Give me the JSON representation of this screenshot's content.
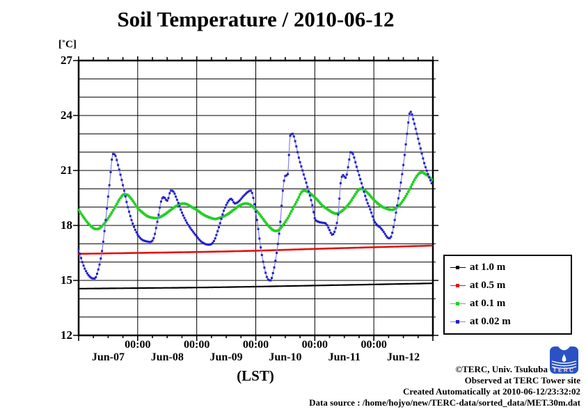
{
  "chart_data": {
    "type": "line",
    "title": "Soil Temperature / 2010-06-12",
    "x_axis": {
      "label": "(LST)",
      "hours_total": 144,
      "minor_tick_hours": 6,
      "major_tick_hours": 24,
      "day_labels": [
        "Jun-07",
        "Jun-08",
        "Jun-09",
        "Jun-10",
        "Jun-11",
        "Jun-12"
      ],
      "time_labels": [
        "00:00",
        "00:00",
        "00:00",
        "00:00",
        "00:00"
      ]
    },
    "y_axis": {
      "unit": "[˚C]",
      "min": 12,
      "max": 27,
      "major_ticks": [
        27,
        24,
        21,
        18,
        15,
        12
      ],
      "grid_step_c": 1
    },
    "sample_step_hours": 0.5,
    "series": [
      {
        "name": "at 1.0 m",
        "color": "#000000",
        "line_color": "#000000",
        "marker_size": 2.2,
        "line_width": 1.2,
        "points": [
          [
            0,
            14.55
          ],
          [
            24,
            14.58
          ],
          [
            48,
            14.61
          ],
          [
            72,
            14.66
          ],
          [
            96,
            14.72
          ],
          [
            120,
            14.78
          ],
          [
            143.5,
            14.84
          ]
        ]
      },
      {
        "name": "at 0.5 m",
        "color": "#e60f0f",
        "line_color": "#e60f0f",
        "marker_size": 2.6,
        "line_width": 1.4,
        "points": [
          [
            0,
            16.45
          ],
          [
            24,
            16.5
          ],
          [
            48,
            16.55
          ],
          [
            72,
            16.62
          ],
          [
            96,
            16.72
          ],
          [
            120,
            16.81
          ],
          [
            143.5,
            16.9
          ]
        ]
      },
      {
        "name": "at 0.1 m",
        "color": "#24ce24",
        "line_color": "#3cd63c",
        "marker_size": 3.6,
        "line_width": 1.8,
        "points": [
          [
            0,
            18.85
          ],
          [
            2,
            18.45
          ],
          [
            4,
            18.1
          ],
          [
            6,
            17.85
          ],
          [
            7.5,
            17.8
          ],
          [
            9,
            17.9
          ],
          [
            11,
            18.2
          ],
          [
            13,
            18.6
          ],
          [
            15,
            19.05
          ],
          [
            17,
            19.5
          ],
          [
            18.5,
            19.7
          ],
          [
            20,
            19.65
          ],
          [
            22,
            19.35
          ],
          [
            24,
            18.95
          ],
          [
            26,
            18.7
          ],
          [
            28,
            18.5
          ],
          [
            30,
            18.42
          ],
          [
            31.5,
            18.4
          ],
          [
            33,
            18.45
          ],
          [
            35,
            18.6
          ],
          [
            37,
            18.8
          ],
          [
            39,
            19.0
          ],
          [
            41,
            19.15
          ],
          [
            42.5,
            19.2
          ],
          [
            44,
            19.15
          ],
          [
            46,
            19.0
          ],
          [
            48,
            18.85
          ],
          [
            50,
            18.65
          ],
          [
            52,
            18.5
          ],
          [
            54,
            18.4
          ],
          [
            55.5,
            18.35
          ],
          [
            57,
            18.4
          ],
          [
            59,
            18.5
          ],
          [
            61,
            18.65
          ],
          [
            63,
            18.85
          ],
          [
            65,
            19.05
          ],
          [
            66.5,
            19.15
          ],
          [
            68,
            19.2
          ],
          [
            69.5,
            19.15
          ],
          [
            71,
            19.0
          ],
          [
            73,
            18.7
          ],
          [
            75,
            18.35
          ],
          [
            77,
            18.0
          ],
          [
            79,
            17.75
          ],
          [
            80,
            17.7
          ],
          [
            81,
            17.72
          ],
          [
            83,
            18.0
          ],
          [
            85,
            18.4
          ],
          [
            87,
            18.9
          ],
          [
            89,
            19.4
          ],
          [
            90.5,
            19.8
          ],
          [
            91.5,
            19.9
          ],
          [
            93,
            19.85
          ],
          [
            95,
            19.65
          ],
          [
            97,
            19.4
          ],
          [
            99,
            19.1
          ],
          [
            101,
            18.9
          ],
          [
            103,
            18.72
          ],
          [
            104.5,
            18.65
          ],
          [
            106,
            18.7
          ],
          [
            108,
            18.9
          ],
          [
            110,
            19.2
          ],
          [
            112,
            19.6
          ],
          [
            113.5,
            19.9
          ],
          [
            114.5,
            20.0
          ],
          [
            116,
            19.95
          ],
          [
            118,
            19.7
          ],
          [
            120,
            19.4
          ],
          [
            122,
            19.15
          ],
          [
            124,
            18.98
          ],
          [
            126,
            18.88
          ],
          [
            127.5,
            18.85
          ],
          [
            129,
            18.95
          ],
          [
            131,
            19.2
          ],
          [
            133,
            19.6
          ],
          [
            135,
            20.1
          ],
          [
            137,
            20.6
          ],
          [
            138.5,
            20.85
          ],
          [
            139.5,
            20.9
          ],
          [
            141,
            20.8
          ],
          [
            142.5,
            20.65
          ],
          [
            143.5,
            20.5
          ]
        ]
      },
      {
        "name": "at 0.02 m",
        "color": "#1f1fc8",
        "line_color": "#8282e6",
        "marker_size": 3.0,
        "line_width": 1.2,
        "points": [
          [
            0,
            16.7
          ],
          [
            1.5,
            16.0
          ],
          [
            3,
            15.5
          ],
          [
            5,
            15.15
          ],
          [
            6.5,
            15.1
          ],
          [
            8,
            15.6
          ],
          [
            9.5,
            16.6
          ],
          [
            11,
            18.3
          ],
          [
            12.5,
            20.2
          ],
          [
            14,
            21.9
          ],
          [
            14.8,
            21.85
          ],
          [
            16,
            21.3
          ],
          [
            18,
            20.2
          ],
          [
            20,
            19.0
          ],
          [
            22,
            18.1
          ],
          [
            24,
            17.5
          ],
          [
            25.5,
            17.25
          ],
          [
            27,
            17.15
          ],
          [
            29,
            17.1
          ],
          [
            30.5,
            17.3
          ],
          [
            32,
            18.2
          ],
          [
            33.5,
            19.3
          ],
          [
            34.5,
            19.55
          ],
          [
            36,
            19.35
          ],
          [
            37.5,
            19.9
          ],
          [
            38.5,
            19.85
          ],
          [
            40,
            19.4
          ],
          [
            42,
            18.7
          ],
          [
            44,
            18.15
          ],
          [
            46,
            17.75
          ],
          [
            48,
            17.4
          ],
          [
            50,
            17.1
          ],
          [
            53,
            16.95
          ],
          [
            55,
            17.15
          ],
          [
            57,
            17.9
          ],
          [
            59,
            18.8
          ],
          [
            61,
            19.35
          ],
          [
            62,
            19.45
          ],
          [
            63.5,
            19.2
          ],
          [
            65,
            19.3
          ],
          [
            67,
            19.6
          ],
          [
            69,
            19.85
          ],
          [
            70,
            19.9
          ],
          [
            71,
            19.5
          ],
          [
            72.5,
            18.3
          ],
          [
            74,
            16.8
          ],
          [
            75.5,
            15.7
          ],
          [
            77,
            15.05
          ],
          [
            78,
            15.0
          ],
          [
            79,
            15.4
          ],
          [
            80.5,
            16.5
          ],
          [
            82,
            18.2
          ],
          [
            83,
            19.9
          ],
          [
            84,
            20.7
          ],
          [
            85,
            20.8
          ],
          [
            86,
            22.9
          ],
          [
            87,
            23.0
          ],
          [
            88,
            22.6
          ],
          [
            89.5,
            21.7
          ],
          [
            91,
            21.0
          ],
          [
            93,
            20.1
          ],
          [
            95,
            19.1
          ],
          [
            96,
            18.4
          ],
          [
            97.5,
            18.2
          ],
          [
            99,
            18.15
          ],
          [
            100.5,
            18.1
          ],
          [
            102,
            17.75
          ],
          [
            103,
            17.5
          ],
          [
            104,
            17.65
          ],
          [
            105.5,
            18.6
          ],
          [
            106.5,
            20.3
          ],
          [
            107.5,
            20.75
          ],
          [
            108.5,
            20.6
          ],
          [
            110,
            21.6
          ],
          [
            110.5,
            22.0
          ],
          [
            111.5,
            21.9
          ],
          [
            113,
            21.2
          ],
          [
            115,
            20.3
          ],
          [
            117,
            19.4
          ],
          [
            119,
            18.7
          ],
          [
            120,
            18.3
          ],
          [
            121.5,
            18.0
          ],
          [
            122.5,
            17.9
          ],
          [
            124,
            17.65
          ],
          [
            125.5,
            17.35
          ],
          [
            126.5,
            17.3
          ],
          [
            127.5,
            17.6
          ],
          [
            129,
            18.7
          ],
          [
            130.5,
            19.9
          ],
          [
            132,
            21.3
          ],
          [
            133.5,
            23.0
          ],
          [
            134.5,
            24.1
          ],
          [
            135,
            24.2
          ],
          [
            136,
            23.8
          ],
          [
            137.5,
            23.0
          ],
          [
            139,
            22.2
          ],
          [
            140.5,
            21.4
          ],
          [
            142,
            20.8
          ],
          [
            143.5,
            20.3
          ]
        ]
      }
    ],
    "legend_position": "right-bottom-outside"
  },
  "footer": {
    "credit": "©TERC, Univ. Tsukuba",
    "site": "Observed at TERC Tower site",
    "created": "Created Automatically at 2010-06-12/23:32:02",
    "source": "Data source : /home/hojyo/new/TERC-data/sorted_data/MET.30m.dat",
    "logo_text": "TERC"
  }
}
